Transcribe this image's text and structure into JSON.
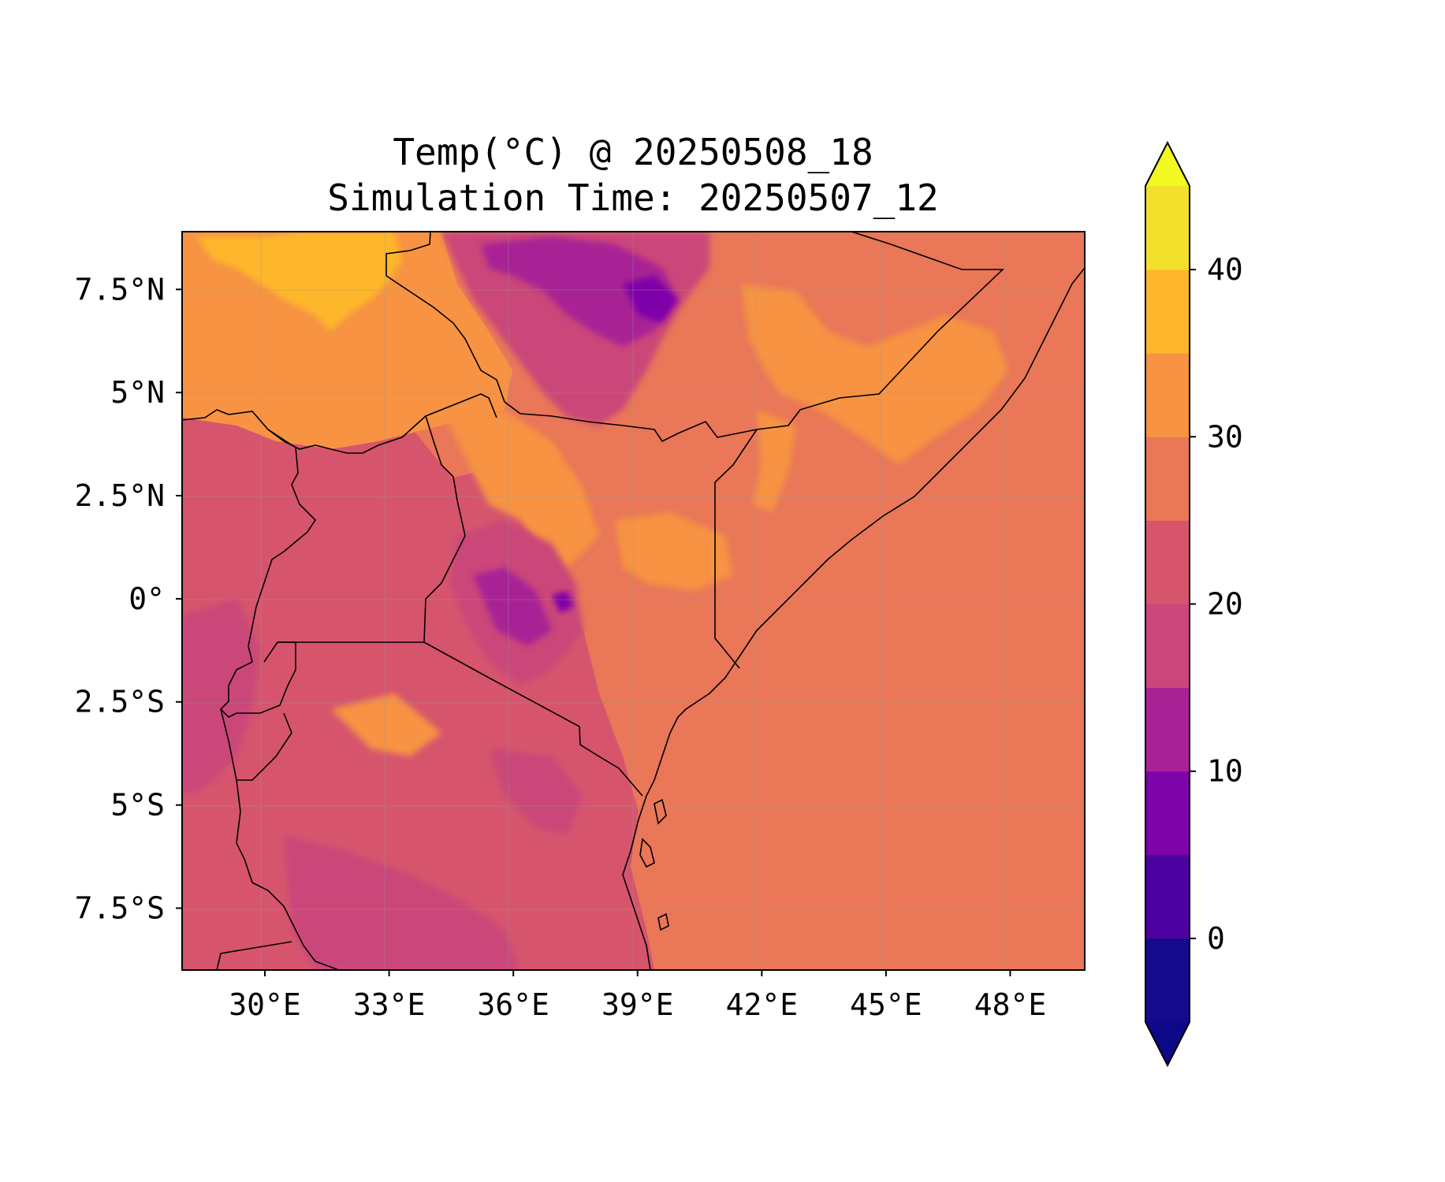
{
  "title": {
    "line1": "Temp(°C) @ 20250508_18",
    "line2": "Simulation Time: 20250507_12"
  },
  "chart_data": {
    "type": "heatmap",
    "variable": "Temp(°C)",
    "x_ticks": [
      "30°E",
      "33°E",
      "36°E",
      "39°E",
      "42°E",
      "45°E",
      "48°E"
    ],
    "x_tick_values": [
      30,
      33,
      36,
      39,
      42,
      45,
      48
    ],
    "y_ticks": [
      "7.5°N",
      "5°N",
      "2.5°N",
      "0°",
      "2.5°S",
      "5°S",
      "7.5°S"
    ],
    "y_tick_values": [
      7.5,
      5,
      2.5,
      0,
      -2.5,
      -5,
      -7.5
    ],
    "xlim": [
      28,
      49.8
    ],
    "ylim": [
      -9,
      8.9
    ],
    "grid": true,
    "colorbar": {
      "levels": [
        -5,
        0,
        5,
        10,
        15,
        20,
        25,
        30,
        35,
        40,
        45
      ],
      "colors": [
        "#140b8c",
        "#4c02a1",
        "#7e03a8",
        "#a82296",
        "#cb4679",
        "#d6556d",
        "#e97758",
        "#f79342",
        "#feb72a",
        "#f3e02c"
      ],
      "extend_under_color": "#0d0887",
      "extend_over_color": "#f0f921",
      "tick_labels": [
        "0",
        "10",
        "20",
        "30",
        "40"
      ],
      "tick_values": [
        0,
        10,
        20,
        30,
        40
      ]
    },
    "regions": {
      "ocean": {
        "approx_value": 27
      },
      "hot_north_sudan": {
        "approx_value": 38
      },
      "ethiopian_highlands": {
        "approx_value": 15
      },
      "kenya_highlands": {
        "approx_value": 17
      },
      "lake_victoria_basin": {
        "approx_value": 22
      },
      "northern_kenya": {
        "approx_value": 31
      },
      "somalia_interior": {
        "approx_value": 31
      },
      "tanzania_plateau": {
        "approx_value": 22
      }
    }
  }
}
